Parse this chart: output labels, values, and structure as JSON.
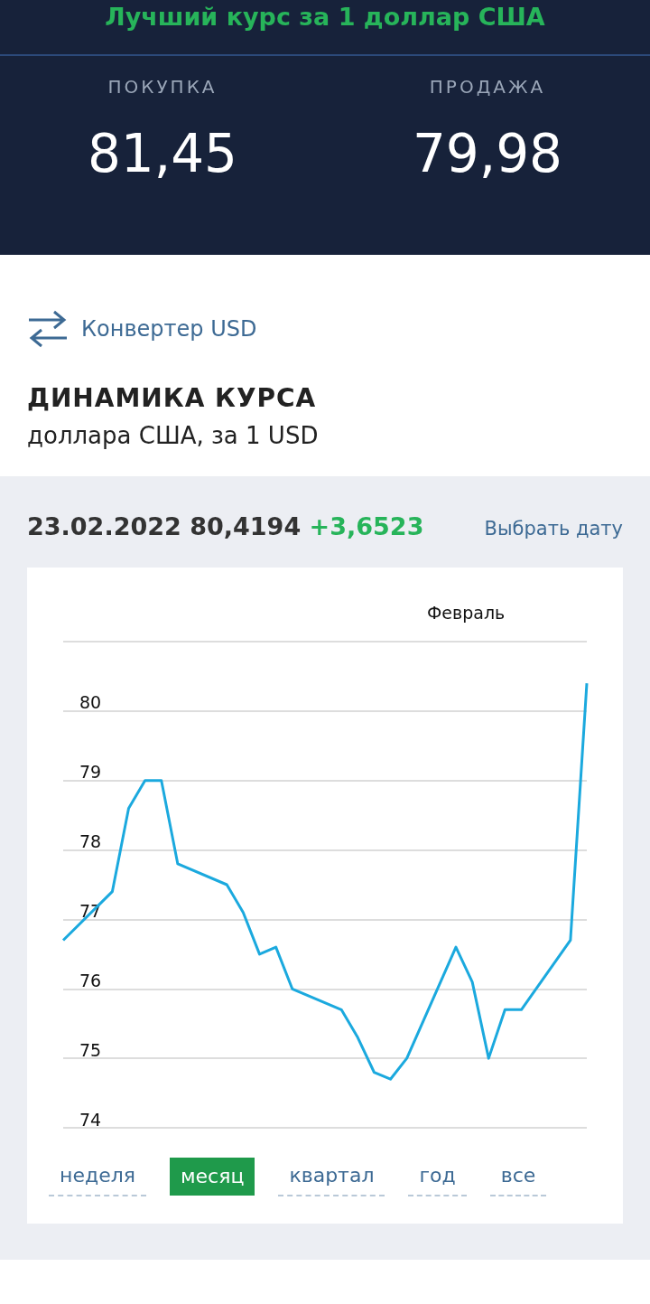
{
  "chart_data": {
    "type": "line",
    "title": "ДИНАМИКА КУРСА",
    "subtitle": "доллара США, за 1 USD",
    "categories": [
      null,
      null,
      null,
      null,
      null,
      null,
      null,
      null,
      null,
      null,
      null,
      null,
      null,
      null,
      null,
      null,
      null,
      null,
      null,
      null,
      null,
      null,
      null,
      null,
      null,
      null,
      null,
      null,
      null,
      null,
      null,
      null,
      null
    ],
    "values": [
      76.7,
      null,
      null,
      77.4,
      78.6,
      79.0,
      79.0,
      77.8,
      null,
      null,
      77.5,
      77.1,
      76.5,
      76.6,
      76.0,
      null,
      null,
      75.7,
      75.3,
      74.8,
      74.7,
      75.0,
      null,
      null,
      76.6,
      76.1,
      75.0,
      75.7,
      75.7,
      null,
      null,
      76.7,
      80.4
    ],
    "color": "#1ba9de",
    "ylim": [
      74,
      81
    ],
    "yticks": [
      74,
      75,
      76,
      77,
      78,
      79,
      80,
      {
        "value": 81,
        "label": null
      }
    ],
    "grid": "y",
    "tick_labels": "y",
    "marker": "none",
    "annotations": [
      "Лучший курс за 1 доллар США",
      "ПОКУПКА",
      "81,45",
      "ПРОДАЖА",
      "79,98",
      "Конвертер USD",
      "23.02.2022",
      "80,4194",
      "+3,6523",
      "Выбрать дату",
      "Февраль",
      "неделя",
      "месяц",
      "квартал",
      "год",
      "все"
    ]
  }
}
